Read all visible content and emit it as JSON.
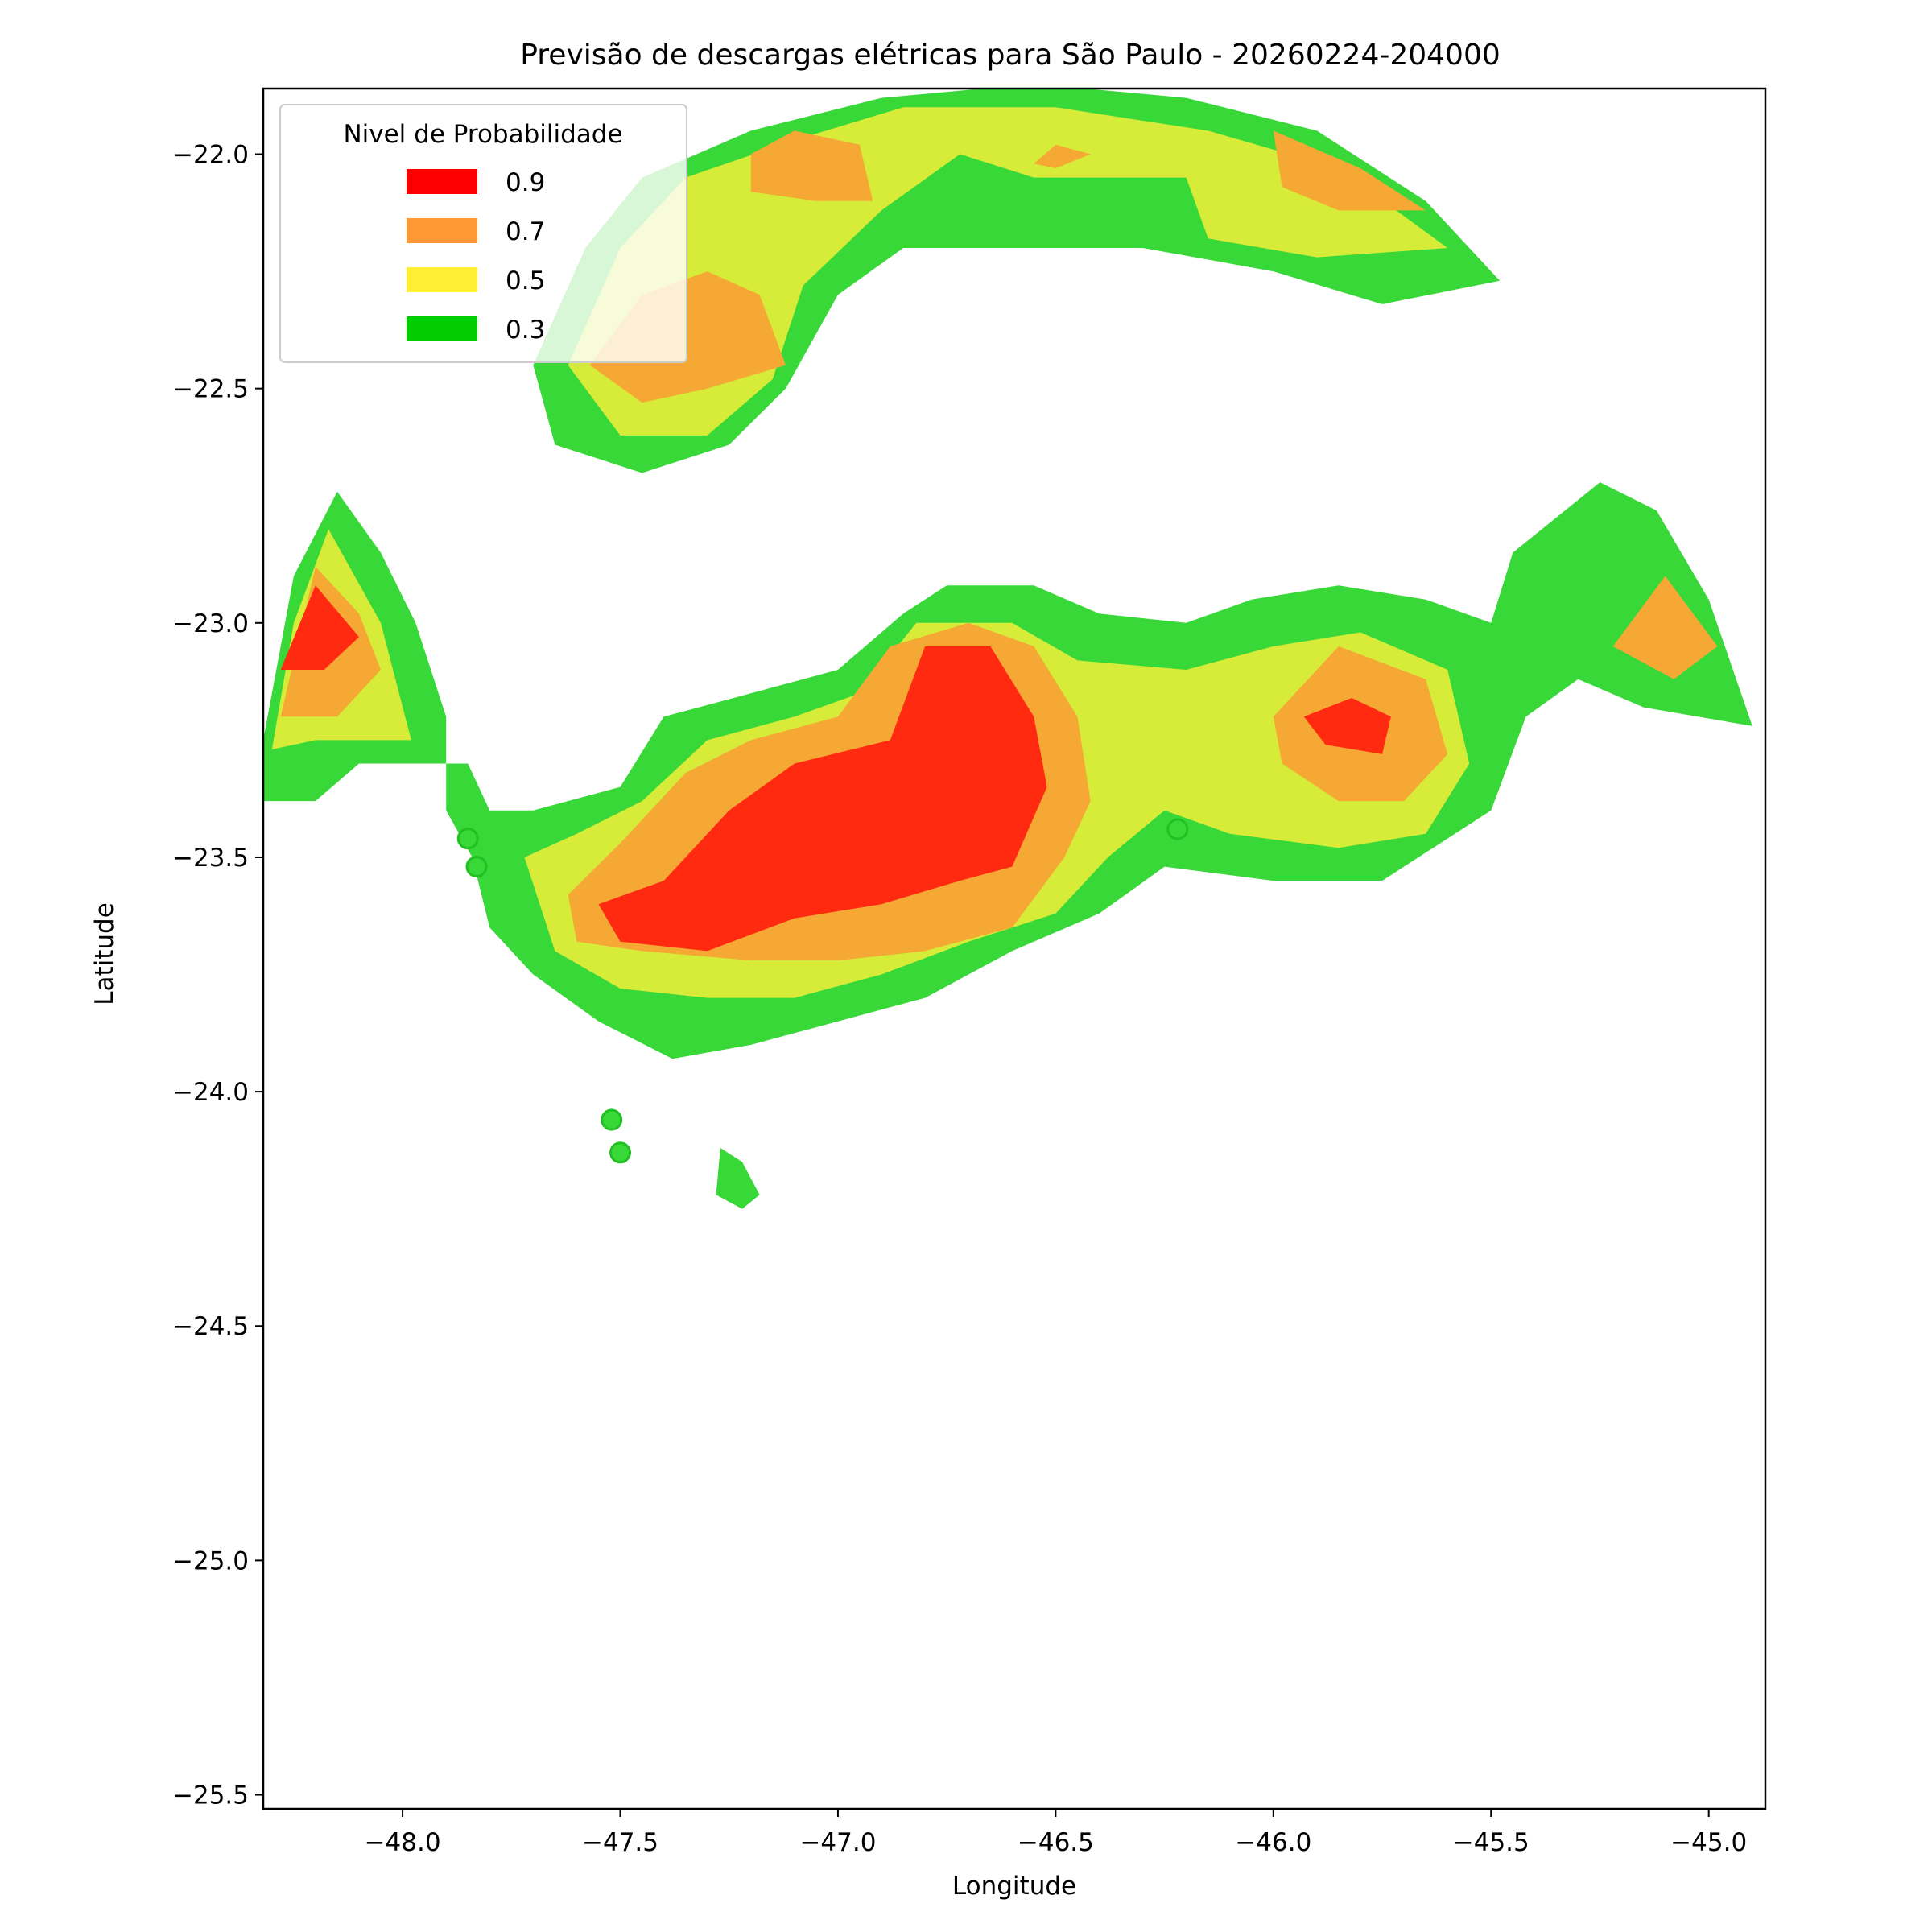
{
  "chart_data": {
    "type": "contour",
    "title": "Previsão de descargas elétricas para São Paulo - 20260224-204000",
    "xlabel": "Longitude",
    "ylabel": "Latitude",
    "xlim": [
      -48.32,
      -44.87
    ],
    "ylim": [
      -25.53,
      -21.86
    ],
    "xticks": [
      -48.0,
      -47.5,
      -47.0,
      -46.5,
      -46.0,
      -45.5,
      -45.0
    ],
    "xtick_labels": [
      "−48.0",
      "−47.5",
      "−47.0",
      "−46.5",
      "−46.0",
      "−45.5",
      "−45.0"
    ],
    "yticks": [
      -22.0,
      -22.5,
      -23.0,
      -23.5,
      -24.0,
      -24.5,
      -25.0,
      -25.5
    ],
    "ytick_labels": [
      "−22.0",
      "−22.5",
      "−23.0",
      "−23.5",
      "−24.0",
      "−24.5",
      "−25.0",
      "−25.5"
    ],
    "grid": false,
    "legend": {
      "title": "Nivel de Probabilidade",
      "placement": "top-left",
      "entries": [
        {
          "label": "0.9",
          "color": "#ff0000"
        },
        {
          "label": "0.7",
          "color": "#ff9933"
        },
        {
          "label": "0.5",
          "color": "#ffee33"
        },
        {
          "label": "0.3",
          "color": "#00cc00"
        }
      ]
    },
    "fill_colors": {
      "0.9": "#ff2a10",
      "0.7": "#f5a833",
      "0.5": "#d6ec38",
      "0.3": "#38d838"
    },
    "regions": [
      {
        "level": 0.3,
        "polygon": [
          [
            -47.7,
            -22.45
          ],
          [
            -47.58,
            -22.2
          ],
          [
            -47.45,
            -22.05
          ],
          [
            -47.2,
            -21.95
          ],
          [
            -46.9,
            -21.88
          ],
          [
            -46.55,
            -21.85
          ],
          [
            -46.2,
            -21.88
          ],
          [
            -45.9,
            -21.95
          ],
          [
            -45.65,
            -22.1
          ],
          [
            -45.48,
            -22.27
          ],
          [
            -45.75,
            -22.32
          ],
          [
            -46.0,
            -22.25
          ],
          [
            -46.3,
            -22.2
          ],
          [
            -46.6,
            -22.2
          ],
          [
            -46.85,
            -22.2
          ],
          [
            -47.0,
            -22.3
          ],
          [
            -47.12,
            -22.5
          ],
          [
            -47.25,
            -22.62
          ],
          [
            -47.45,
            -22.68
          ],
          [
            -47.65,
            -22.62
          ]
        ]
      },
      {
        "level": 0.5,
        "polygon": [
          [
            -47.62,
            -22.45
          ],
          [
            -47.5,
            -22.2
          ],
          [
            -47.35,
            -22.05
          ],
          [
            -47.1,
            -21.97
          ],
          [
            -46.85,
            -21.9
          ],
          [
            -46.5,
            -21.9
          ],
          [
            -46.15,
            -21.95
          ],
          [
            -45.85,
            -22.03
          ],
          [
            -45.6,
            -22.2
          ],
          [
            -45.9,
            -22.22
          ],
          [
            -46.15,
            -22.18
          ],
          [
            -46.2,
            -22.05
          ],
          [
            -46.55,
            -22.05
          ],
          [
            -46.72,
            -22.0
          ],
          [
            -46.9,
            -22.12
          ],
          [
            -47.08,
            -22.28
          ],
          [
            -47.15,
            -22.48
          ],
          [
            -47.3,
            -22.6
          ],
          [
            -47.5,
            -22.6
          ]
        ]
      },
      {
        "level": 0.7,
        "polygon": [
          [
            -47.57,
            -22.45
          ],
          [
            -47.45,
            -22.3
          ],
          [
            -47.3,
            -22.25
          ],
          [
            -47.18,
            -22.3
          ],
          [
            -47.12,
            -22.45
          ],
          [
            -47.3,
            -22.5
          ],
          [
            -47.45,
            -22.53
          ]
        ]
      },
      {
        "level": 0.7,
        "polygon": [
          [
            -47.2,
            -22.0
          ],
          [
            -47.1,
            -21.95
          ],
          [
            -46.95,
            -21.98
          ],
          [
            -46.92,
            -22.1
          ],
          [
            -47.05,
            -22.1
          ],
          [
            -47.2,
            -22.08
          ]
        ]
      },
      {
        "level": 0.7,
        "polygon": [
          [
            -46.0,
            -21.95
          ],
          [
            -45.8,
            -22.03
          ],
          [
            -45.65,
            -22.12
          ],
          [
            -45.85,
            -22.12
          ],
          [
            -45.98,
            -22.07
          ]
        ]
      },
      {
        "level": 0.7,
        "polygon": [
          [
            -46.5,
            -21.98
          ],
          [
            -46.42,
            -22.0
          ],
          [
            -46.5,
            -22.03
          ],
          [
            -46.55,
            -22.02
          ]
        ]
      },
      {
        "level": 0.3,
        "polygon": [
          [
            -48.32,
            -23.38
          ],
          [
            -48.32,
            -23.25
          ],
          [
            -48.25,
            -22.9
          ],
          [
            -48.15,
            -22.72
          ],
          [
            -48.05,
            -22.85
          ],
          [
            -47.97,
            -23.0
          ],
          [
            -47.9,
            -23.2
          ],
          [
            -47.9,
            -23.4
          ],
          [
            -47.84,
            -23.5
          ],
          [
            -47.8,
            -23.65
          ],
          [
            -47.7,
            -23.75
          ],
          [
            -47.55,
            -23.85
          ],
          [
            -47.38,
            -23.93
          ],
          [
            -47.2,
            -23.9
          ],
          [
            -47.0,
            -23.85
          ],
          [
            -46.8,
            -23.8
          ],
          [
            -46.6,
            -23.7
          ],
          [
            -46.4,
            -23.62
          ],
          [
            -46.25,
            -23.52
          ],
          [
            -46.0,
            -23.55
          ],
          [
            -45.75,
            -23.55
          ],
          [
            -45.5,
            -23.4
          ],
          [
            -45.42,
            -23.2
          ],
          [
            -45.3,
            -23.12
          ],
          [
            -45.15,
            -23.18
          ],
          [
            -44.9,
            -23.22
          ],
          [
            -45.0,
            -22.95
          ],
          [
            -45.12,
            -22.76
          ],
          [
            -45.25,
            -22.7
          ],
          [
            -45.45,
            -22.85
          ],
          [
            -45.5,
            -23.0
          ],
          [
            -45.65,
            -22.95
          ],
          [
            -45.85,
            -22.92
          ],
          [
            -46.05,
            -22.95
          ],
          [
            -46.2,
            -23.0
          ],
          [
            -46.4,
            -22.98
          ],
          [
            -46.55,
            -22.92
          ],
          [
            -46.75,
            -22.92
          ],
          [
            -46.85,
            -22.98
          ],
          [
            -47.0,
            -23.1
          ],
          [
            -47.2,
            -23.15
          ],
          [
            -47.4,
            -23.2
          ],
          [
            -47.5,
            -23.35
          ],
          [
            -47.7,
            -23.4
          ],
          [
            -47.8,
            -23.4
          ],
          [
            -47.85,
            -23.3
          ],
          [
            -47.95,
            -23.3
          ],
          [
            -48.1,
            -23.3
          ],
          [
            -48.2,
            -23.38
          ]
        ]
      },
      {
        "level": 0.5,
        "polygon": [
          [
            -48.3,
            -23.27
          ],
          [
            -48.25,
            -23.0
          ],
          [
            -48.17,
            -22.8
          ],
          [
            -48.05,
            -23.0
          ],
          [
            -47.98,
            -23.25
          ],
          [
            -48.2,
            -23.25
          ]
        ]
      },
      {
        "level": 0.5,
        "polygon": [
          [
            -47.72,
            -23.5
          ],
          [
            -47.6,
            -23.45
          ],
          [
            -47.45,
            -23.38
          ],
          [
            -47.3,
            -23.25
          ],
          [
            -47.1,
            -23.2
          ],
          [
            -46.95,
            -23.15
          ],
          [
            -46.82,
            -23.0
          ],
          [
            -46.6,
            -23.0
          ],
          [
            -46.45,
            -23.08
          ],
          [
            -46.2,
            -23.1
          ],
          [
            -46.0,
            -23.05
          ],
          [
            -45.8,
            -23.02
          ],
          [
            -45.6,
            -23.1
          ],
          [
            -45.55,
            -23.3
          ],
          [
            -45.65,
            -23.45
          ],
          [
            -45.85,
            -23.48
          ],
          [
            -46.1,
            -23.45
          ],
          [
            -46.25,
            -23.4
          ],
          [
            -46.38,
            -23.5
          ],
          [
            -46.5,
            -23.62
          ],
          [
            -46.7,
            -23.68
          ],
          [
            -46.9,
            -23.75
          ],
          [
            -47.1,
            -23.8
          ],
          [
            -47.3,
            -23.8
          ],
          [
            -47.5,
            -23.78
          ],
          [
            -47.65,
            -23.7
          ]
        ]
      },
      {
        "level": 0.7,
        "polygon": [
          [
            -47.62,
            -23.58
          ],
          [
            -47.5,
            -23.47
          ],
          [
            -47.35,
            -23.32
          ],
          [
            -47.2,
            -23.25
          ],
          [
            -47.0,
            -23.2
          ],
          [
            -46.88,
            -23.05
          ],
          [
            -46.7,
            -23.0
          ],
          [
            -46.55,
            -23.05
          ],
          [
            -46.45,
            -23.2
          ],
          [
            -46.42,
            -23.38
          ],
          [
            -46.48,
            -23.5
          ],
          [
            -46.6,
            -23.65
          ],
          [
            -46.8,
            -23.7
          ],
          [
            -47.0,
            -23.72
          ],
          [
            -47.2,
            -23.72
          ],
          [
            -47.45,
            -23.7
          ],
          [
            -47.6,
            -23.68
          ]
        ]
      },
      {
        "level": 0.7,
        "polygon": [
          [
            -46.0,
            -23.2
          ],
          [
            -45.85,
            -23.05
          ],
          [
            -45.65,
            -23.12
          ],
          [
            -45.6,
            -23.28
          ],
          [
            -45.7,
            -23.38
          ],
          [
            -45.85,
            -23.38
          ],
          [
            -45.98,
            -23.3
          ]
        ]
      },
      {
        "level": 0.7,
        "polygon": [
          [
            -48.28,
            -23.2
          ],
          [
            -48.2,
            -22.88
          ],
          [
            -48.1,
            -22.98
          ],
          [
            -48.05,
            -23.1
          ],
          [
            -48.15,
            -23.2
          ]
        ]
      },
      {
        "level": 0.7,
        "polygon": [
          [
            -45.22,
            -23.05
          ],
          [
            -45.1,
            -22.9
          ],
          [
            -44.98,
            -23.05
          ],
          [
            -45.08,
            -23.12
          ]
        ]
      },
      {
        "level": 0.9,
        "polygon": [
          [
            -47.55,
            -23.6
          ],
          [
            -47.4,
            -23.55
          ],
          [
            -47.25,
            -23.4
          ],
          [
            -47.1,
            -23.3
          ],
          [
            -46.88,
            -23.25
          ],
          [
            -46.8,
            -23.05
          ],
          [
            -46.65,
            -23.05
          ],
          [
            -46.55,
            -23.2
          ],
          [
            -46.52,
            -23.35
          ],
          [
            -46.6,
            -23.52
          ],
          [
            -46.72,
            -23.55
          ],
          [
            -46.9,
            -23.6
          ],
          [
            -47.1,
            -23.63
          ],
          [
            -47.3,
            -23.7
          ],
          [
            -47.5,
            -23.68
          ]
        ]
      },
      {
        "level": 0.9,
        "polygon": [
          [
            -45.93,
            -23.2
          ],
          [
            -45.82,
            -23.16
          ],
          [
            -45.73,
            -23.2
          ],
          [
            -45.75,
            -23.28
          ],
          [
            -45.88,
            -23.26
          ]
        ]
      },
      {
        "level": 0.9,
        "polygon": [
          [
            -48.28,
            -23.1
          ],
          [
            -48.2,
            -22.92
          ],
          [
            -48.1,
            -23.03
          ],
          [
            -48.18,
            -23.1
          ]
        ]
      },
      {
        "level": 0.3,
        "polygon": [
          [
            -47.27,
            -24.12
          ],
          [
            -47.22,
            -24.15
          ],
          [
            -47.18,
            -24.22
          ],
          [
            -47.22,
            -24.25
          ],
          [
            -47.28,
            -24.22
          ]
        ]
      }
    ],
    "points": [
      {
        "lon": -47.85,
        "lat": -23.46
      },
      {
        "lon": -47.83,
        "lat": -23.52
      },
      {
        "lon": -47.52,
        "lat": -24.06
      },
      {
        "lon": -47.5,
        "lat": -24.13
      },
      {
        "lon": -46.22,
        "lat": -23.44
      }
    ]
  }
}
